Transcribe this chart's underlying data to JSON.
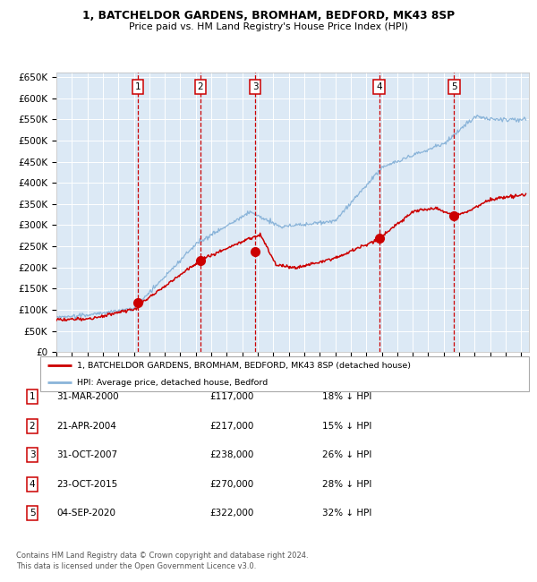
{
  "title": "1, BATCHELDOR GARDENS, BROMHAM, BEDFORD, MK43 8SP",
  "subtitle": "Price paid vs. HM Land Registry's House Price Index (HPI)",
  "ylim": [
    0,
    660000
  ],
  "yticks": [
    0,
    50000,
    100000,
    150000,
    200000,
    250000,
    300000,
    350000,
    400000,
    450000,
    500000,
    550000,
    600000,
    650000
  ],
  "xlim_start": 1995.0,
  "xlim_end": 2025.5,
  "bg_color": "#dce9f5",
  "grid_color": "#ffffff",
  "hpi_color": "#8ab4d9",
  "price_color": "#cc0000",
  "marker_color": "#cc0000",
  "dashed_line_color": "#cc0000",
  "legend1": "1, BATCHELDOR GARDENS, BROMHAM, BEDFORD, MK43 8SP (detached house)",
  "legend2": "HPI: Average price, detached house, Bedford",
  "sales": [
    {
      "num": 1,
      "date": "31-MAR-2000",
      "year": 2000.25,
      "price": 117000,
      "pct": "18% ↓ HPI"
    },
    {
      "num": 2,
      "date": "21-APR-2004",
      "year": 2004.3,
      "price": 217000,
      "pct": "15% ↓ HPI"
    },
    {
      "num": 3,
      "date": "31-OCT-2007",
      "year": 2007.83,
      "price": 238000,
      "pct": "26% ↓ HPI"
    },
    {
      "num": 4,
      "date": "23-OCT-2015",
      "year": 2015.83,
      "price": 270000,
      "pct": "28% ↓ HPI"
    },
    {
      "num": 5,
      "date": "04-SEP-2020",
      "year": 2020.67,
      "price": 322000,
      "pct": "32% ↓ HPI"
    }
  ],
  "footer": "Contains HM Land Registry data © Crown copyright and database right 2024.\nThis data is licensed under the Open Government Licence v3.0.",
  "xtick_years": [
    1995,
    1996,
    1997,
    1998,
    1999,
    2000,
    2001,
    2002,
    2003,
    2004,
    2005,
    2006,
    2007,
    2008,
    2009,
    2010,
    2011,
    2012,
    2013,
    2014,
    2015,
    2016,
    2017,
    2018,
    2019,
    2020,
    2021,
    2022,
    2023,
    2024,
    2025
  ]
}
